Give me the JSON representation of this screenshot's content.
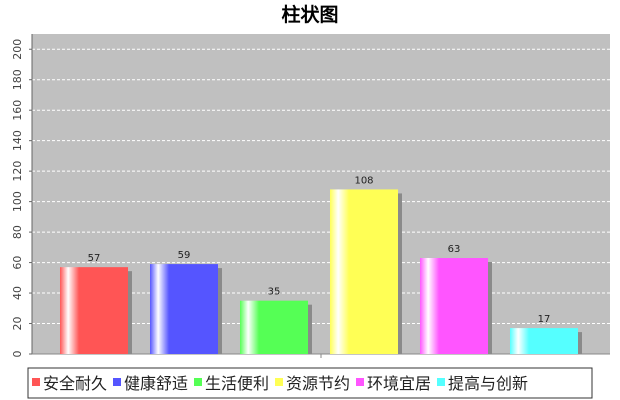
{
  "chart_data": {
    "type": "bar",
    "title": "柱状图",
    "categories": [
      "安全耐久",
      "健康舒适",
      "生活便利",
      "资源节约",
      "环境宜居",
      "提高与创新"
    ],
    "values": [
      57,
      59,
      35,
      108,
      63,
      17
    ],
    "colors": [
      "#ff5555",
      "#5555ff",
      "#55ff55",
      "#ffff55",
      "#ff55ff",
      "#55ffff"
    ],
    "yticks": [
      "0",
      "20",
      "40",
      "60",
      "80",
      "100",
      "120",
      "140",
      "160",
      "180",
      "200"
    ],
    "ylim": [
      0,
      210
    ],
    "grid": true,
    "plot_background": "#c0c0c0",
    "legend_position": "bottom"
  }
}
